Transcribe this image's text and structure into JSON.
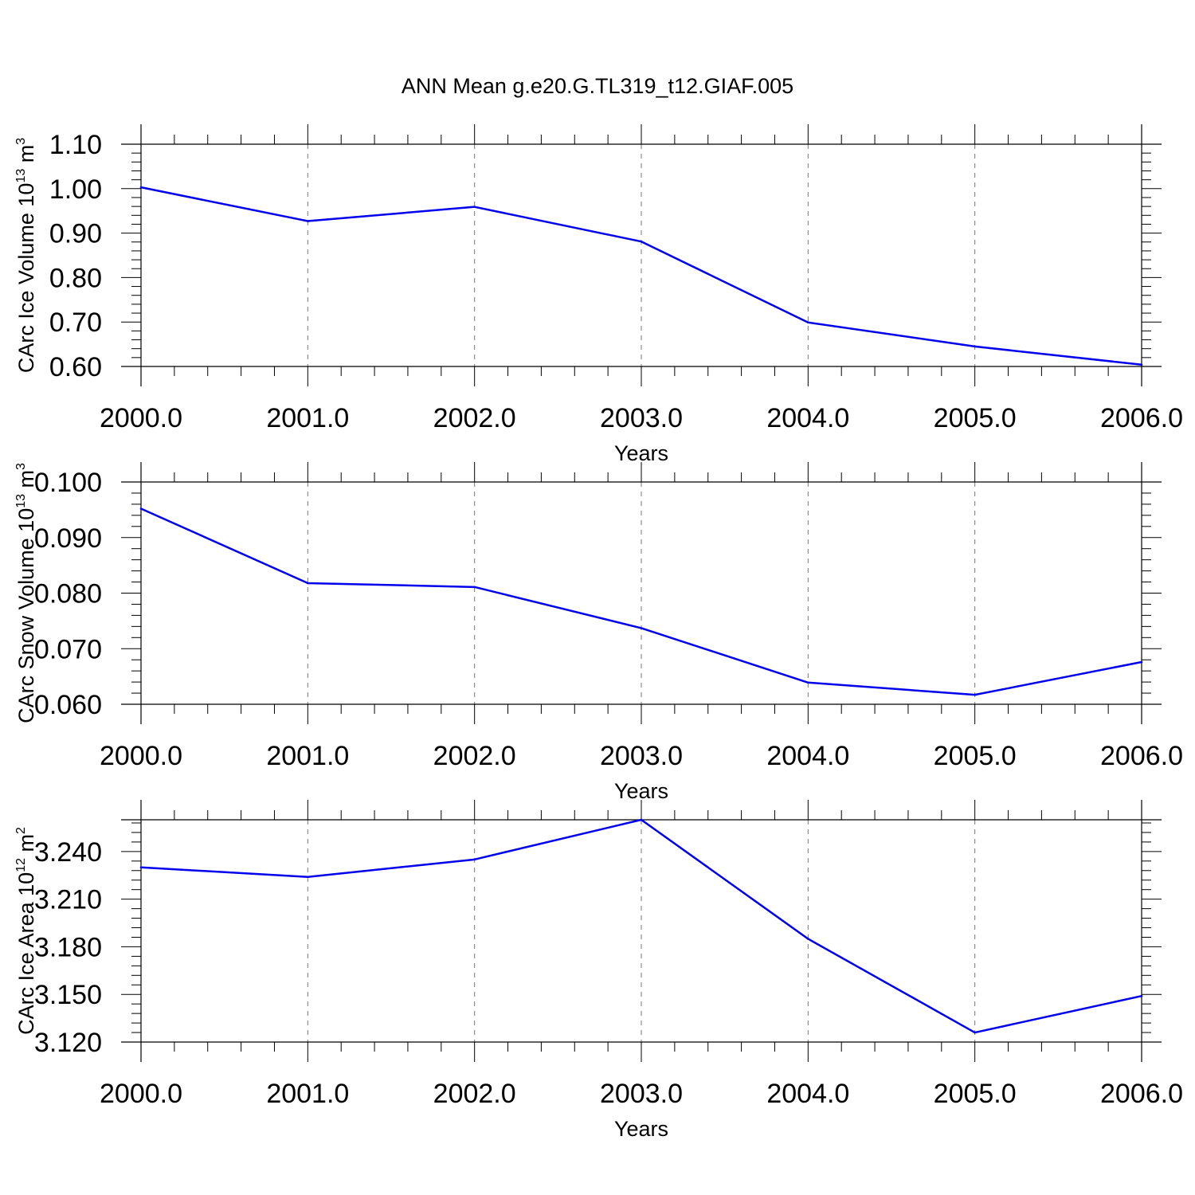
{
  "page": {
    "title": "ANN Mean g.e20.G.TL319_t12.GIAF.005"
  },
  "chart_data": [
    {
      "type": "line",
      "x": [
        2000,
        2001,
        2002,
        2003,
        2004,
        2005,
        2006
      ],
      "xticks": [
        "2000.0",
        "2001.0",
        "2002.0",
        "2003.0",
        "2004.0",
        "2005.0",
        "2006.0"
      ],
      "xlabel": "Years",
      "ylabel_main": "CArc Ice Volume 10",
      "ylabel_exp": "13",
      "ylabel_unit": " m",
      "ylabel_unit_exp": "3",
      "yticks": [
        0.6,
        0.7,
        0.8,
        0.9,
        1.0,
        1.1
      ],
      "ytick_labels": [
        "0.60",
        "0.70",
        "0.80",
        "0.90",
        "1.00",
        "1.10"
      ],
      "ylim": [
        0.6,
        1.1
      ],
      "grid": "vertical dashed",
      "color": "#0000ee",
      "values": [
        1.003,
        0.927,
        0.959,
        0.881,
        0.699,
        0.645,
        0.604
      ]
    },
    {
      "type": "line",
      "x": [
        2000,
        2001,
        2002,
        2003,
        2004,
        2005,
        2006
      ],
      "xticks": [
        "2000.0",
        "2001.0",
        "2002.0",
        "2003.0",
        "2004.0",
        "2005.0",
        "2006.0"
      ],
      "xlabel": "Years",
      "ylabel_main": "CArc Snow Volume 10",
      "ylabel_exp": "13",
      "ylabel_unit": " m",
      "ylabel_unit_exp": "3",
      "yticks": [
        0.06,
        0.07,
        0.08,
        0.09,
        0.1
      ],
      "ytick_labels": [
        "0.060",
        "0.070",
        "0.080",
        "0.090",
        "0.100"
      ],
      "ylim": [
        0.06,
        0.1
      ],
      "grid": "vertical dashed",
      "color": "#0000ee",
      "values": [
        0.0952,
        0.0818,
        0.0811,
        0.0737,
        0.0639,
        0.0617,
        0.0676
      ]
    },
    {
      "type": "line",
      "x": [
        2000,
        2001,
        2002,
        2003,
        2004,
        2005,
        2006
      ],
      "xticks": [
        "2000.0",
        "2001.0",
        "2002.0",
        "2003.0",
        "2004.0",
        "2005.0",
        "2006.0"
      ],
      "xlabel": "Years",
      "ylabel_main": "CArc Ice Area 10",
      "ylabel_exp": "12",
      "ylabel_unit": " m",
      "ylabel_unit_exp": "2",
      "yticks": [
        3.12,
        3.15,
        3.18,
        3.21,
        3.24
      ],
      "ytick_labels": [
        "3.120",
        "3.150",
        "3.180",
        "3.210",
        "3.240"
      ],
      "ylim": [
        3.12,
        3.26
      ],
      "grid": "vertical dashed",
      "color": "#0000ee",
      "values": [
        3.23,
        3.224,
        3.235,
        3.26,
        3.185,
        3.126,
        3.149
      ]
    }
  ]
}
